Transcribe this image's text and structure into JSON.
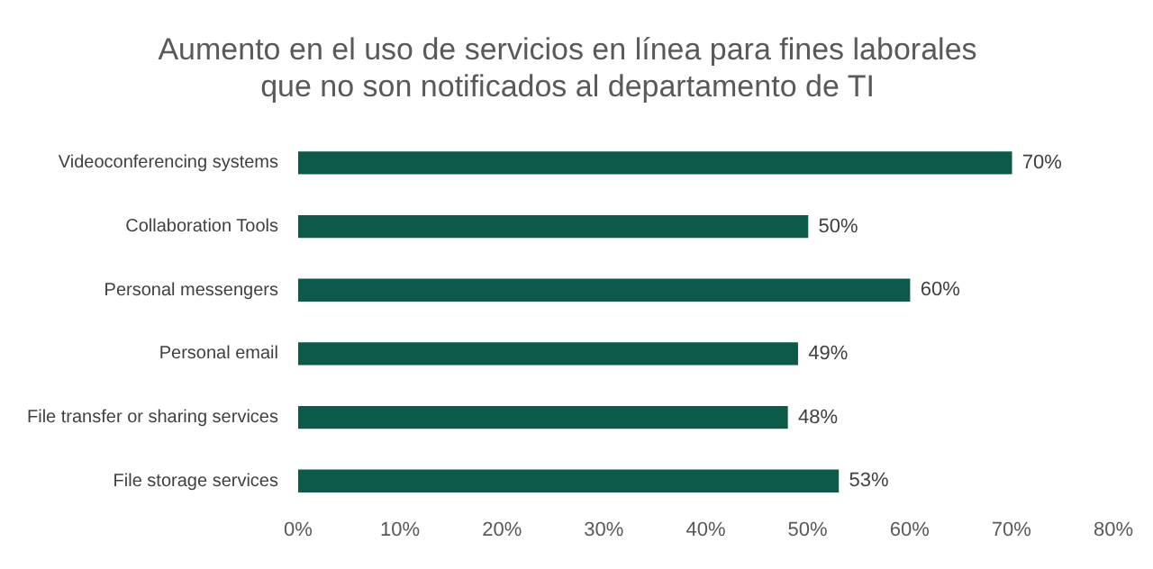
{
  "chart_data": {
    "type": "bar",
    "orientation": "horizontal",
    "title": "Aumento en el uso de servicios en línea para fines laborales que no son notificados al departamento de TI",
    "categories": [
      "Videoconferencing systems",
      "Collaboration Tools",
      "Personal messengers",
      "Personal email",
      "File transfer or sharing services",
      "File storage services"
    ],
    "values": [
      70,
      50,
      60,
      49,
      48,
      53
    ],
    "value_labels": [
      "70%",
      "50%",
      "60%",
      "49%",
      "48%",
      "53%"
    ],
    "color": "#0b5a4a",
    "xlim": [
      0,
      80
    ],
    "xticks": [
      {
        "value": 0,
        "label": "0%"
      },
      {
        "value": 10,
        "label": "10%"
      },
      {
        "value": 20,
        "label": "20%"
      },
      {
        "value": 30,
        "label": "30%"
      },
      {
        "value": 40,
        "label": "40%"
      },
      {
        "value": 50,
        "label": "50%"
      },
      {
        "value": 60,
        "label": "60%"
      },
      {
        "value": 70,
        "label": "70%"
      },
      {
        "value": 80,
        "label": "80%"
      }
    ],
    "grid": false,
    "legend": false
  }
}
